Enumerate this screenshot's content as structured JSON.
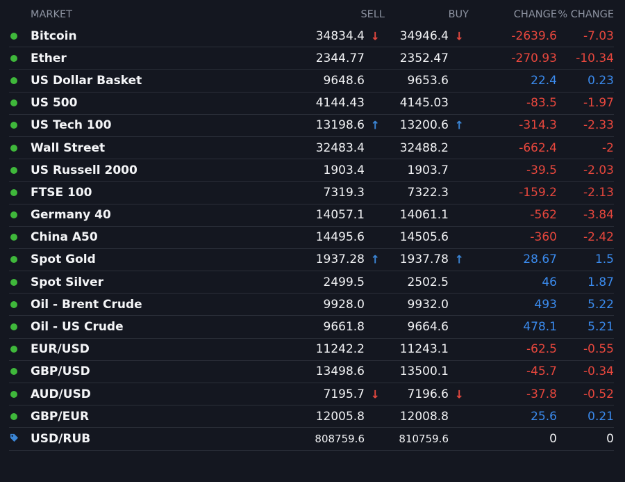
{
  "header": {
    "market": "MARKET",
    "sell": "SELL",
    "buy": "BUY",
    "change": "CHANGE",
    "pct_change": "% CHANGE"
  },
  "colors": {
    "status_dot": "#3fb83b",
    "negative": "#e8473d",
    "positive": "#3b8cf0",
    "arrow_up": "#3b86d6",
    "arrow_down": "#e5483f",
    "tag": "#3b86d6"
  },
  "rows": [
    {
      "name": "Bitcoin",
      "sell": "34834.4",
      "buy": "34946.4",
      "change": "-2639.6",
      "pct": "-7.03",
      "arrow": "↓",
      "dir": "down",
      "trend": "neg",
      "status": "dot"
    },
    {
      "name": "Ether",
      "sell": "2344.77",
      "buy": "2352.47",
      "change": "-270.93",
      "pct": "-10.34",
      "arrow": "",
      "dir": "",
      "trend": "neg",
      "status": "dot"
    },
    {
      "name": "US Dollar Basket",
      "sell": "9648.6",
      "buy": "9653.6",
      "change": "22.4",
      "pct": "0.23",
      "arrow": "",
      "dir": "",
      "trend": "pos",
      "status": "dot"
    },
    {
      "name": "US 500",
      "sell": "4144.43",
      "buy": "4145.03",
      "change": "-83.5",
      "pct": "-1.97",
      "arrow": "",
      "dir": "",
      "trend": "neg",
      "status": "dot"
    },
    {
      "name": "US Tech 100",
      "sell": "13198.6",
      "buy": "13200.6",
      "change": "-314.3",
      "pct": "-2.33",
      "arrow": "↑",
      "dir": "up",
      "trend": "neg",
      "status": "dot"
    },
    {
      "name": "Wall Street",
      "sell": "32483.4",
      "buy": "32488.2",
      "change": "-662.4",
      "pct": "-2",
      "arrow": "",
      "dir": "",
      "trend": "neg",
      "status": "dot"
    },
    {
      "name": "US Russell 2000",
      "sell": "1903.4",
      "buy": "1903.7",
      "change": "-39.5",
      "pct": "-2.03",
      "arrow": "",
      "dir": "",
      "trend": "neg",
      "status": "dot"
    },
    {
      "name": "FTSE 100",
      "sell": "7319.3",
      "buy": "7322.3",
      "change": "-159.2",
      "pct": "-2.13",
      "arrow": "",
      "dir": "",
      "trend": "neg",
      "status": "dot"
    },
    {
      "name": "Germany 40",
      "sell": "14057.1",
      "buy": "14061.1",
      "change": "-562",
      "pct": "-3.84",
      "arrow": "",
      "dir": "",
      "trend": "neg",
      "status": "dot"
    },
    {
      "name": "China A50",
      "sell": "14495.6",
      "buy": "14505.6",
      "change": "-360",
      "pct": "-2.42",
      "arrow": "",
      "dir": "",
      "trend": "neg",
      "status": "dot"
    },
    {
      "name": "Spot Gold",
      "sell": "1937.28",
      "buy": "1937.78",
      "change": "28.67",
      "pct": "1.5",
      "arrow": "↑",
      "dir": "up",
      "trend": "pos",
      "status": "dot"
    },
    {
      "name": "Spot Silver",
      "sell": "2499.5",
      "buy": "2502.5",
      "change": "46",
      "pct": "1.87",
      "arrow": "",
      "dir": "",
      "trend": "pos",
      "status": "dot"
    },
    {
      "name": "Oil - Brent Crude",
      "sell": "9928.0",
      "buy": "9932.0",
      "change": "493",
      "pct": "5.22",
      "arrow": "",
      "dir": "",
      "trend": "pos",
      "status": "dot"
    },
    {
      "name": "Oil - US Crude",
      "sell": "9661.8",
      "buy": "9664.6",
      "change": "478.1",
      "pct": "5.21",
      "arrow": "",
      "dir": "",
      "trend": "pos",
      "status": "dot"
    },
    {
      "name": "EUR/USD",
      "sell": "11242.2",
      "buy": "11243.1",
      "change": "-62.5",
      "pct": "-0.55",
      "arrow": "",
      "dir": "",
      "trend": "neg",
      "status": "dot"
    },
    {
      "name": "GBP/USD",
      "sell": "13498.6",
      "buy": "13500.1",
      "change": "-45.7",
      "pct": "-0.34",
      "arrow": "",
      "dir": "",
      "trend": "neg",
      "status": "dot"
    },
    {
      "name": "AUD/USD",
      "sell": "7195.7",
      "buy": "7196.6",
      "change": "-37.8",
      "pct": "-0.52",
      "arrow": "↓",
      "dir": "down",
      "trend": "neg",
      "status": "dot"
    },
    {
      "name": "GBP/EUR",
      "sell": "12005.8",
      "buy": "12008.8",
      "change": "25.6",
      "pct": "0.21",
      "arrow": "",
      "dir": "",
      "trend": "pos",
      "status": "dot"
    },
    {
      "name": "USD/RUB",
      "sell": "808759.6",
      "buy": "810759.6",
      "change": "0",
      "pct": "0",
      "arrow": "",
      "dir": "",
      "trend": "zero",
      "status": "tag"
    }
  ]
}
